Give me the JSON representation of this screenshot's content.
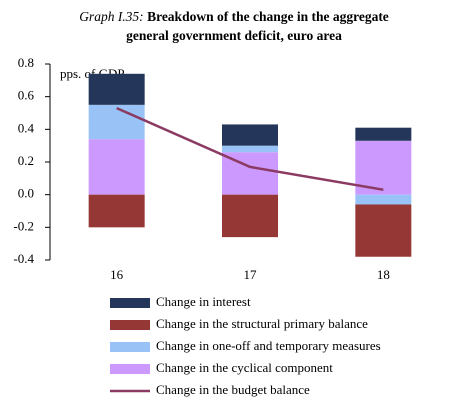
{
  "chart_data": {
    "type": "stacked_bar_line",
    "title_number": "Graph I.35:",
    "title": [
      "Breakdown of the change in the aggregate",
      "general government deficit, euro area"
    ],
    "y_label": "pps. of GDP",
    "categories": [
      "16",
      "17",
      "18"
    ],
    "series": [
      {
        "name": "Change in interest",
        "color": "#243659",
        "kind": "bar",
        "values": [
          0.19,
          0.13,
          0.08
        ]
      },
      {
        "name": "Change in the structural primary balance",
        "color": "#953735",
        "kind": "bar",
        "values": [
          -0.2,
          -0.26,
          -0.32
        ]
      },
      {
        "name": "Change in one-off and temporary measures",
        "color": "#99c3f7",
        "kind": "bar",
        "values": [
          0.21,
          0.04,
          -0.06
        ]
      },
      {
        "name": "Change in the cyclical component",
        "color": "#cc99ff",
        "kind": "bar",
        "values": [
          0.34,
          0.26,
          0.33
        ]
      },
      {
        "name": "Change in the budget balance",
        "color": "#8b3a62",
        "kind": "line",
        "values": [
          0.53,
          0.17,
          0.03
        ]
      }
    ],
    "ylim": [
      -0.4,
      0.8
    ],
    "yticks": [
      -0.4,
      -0.2,
      {
        "value": 0,
        "label": "0.0"
      },
      0.2,
      0.4,
      0.6,
      0.8
    ]
  }
}
